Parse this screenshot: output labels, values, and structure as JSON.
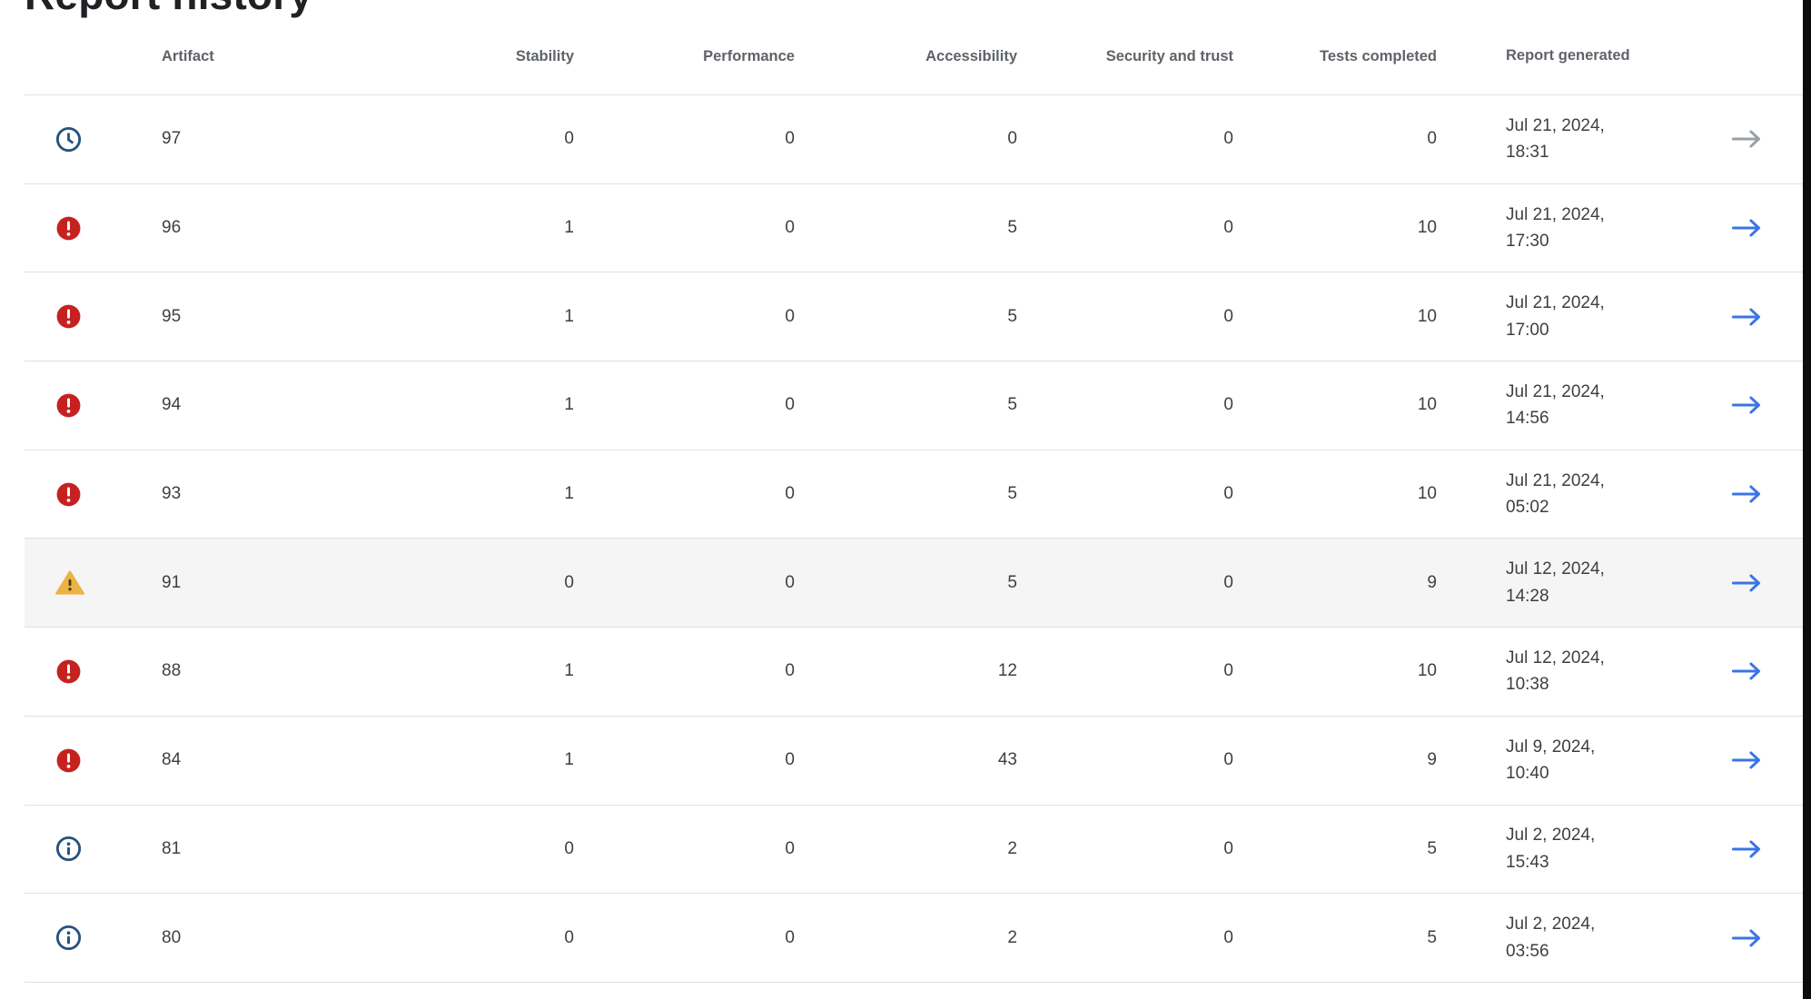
{
  "title": "Report history",
  "columns": {
    "artifact": "Artifact",
    "stability": "Stability",
    "performance": "Performance",
    "accessibility": "Accessibility",
    "security": "Security and trust",
    "tests": "Tests completed",
    "report": "Report generated"
  },
  "rows": [
    {
      "status": "pending",
      "artifact": "97",
      "stability": "0",
      "performance": "0",
      "accessibility": "0",
      "security": "0",
      "tests": "0",
      "date_line1": "Jul 21, 2024,",
      "date_line2": "18:31",
      "arrow": "gray",
      "highlighted": false
    },
    {
      "status": "error",
      "artifact": "96",
      "stability": "1",
      "performance": "0",
      "accessibility": "5",
      "security": "0",
      "tests": "10",
      "date_line1": "Jul 21, 2024,",
      "date_line2": "17:30",
      "arrow": "blue",
      "highlighted": false
    },
    {
      "status": "error",
      "artifact": "95",
      "stability": "1",
      "performance": "0",
      "accessibility": "5",
      "security": "0",
      "tests": "10",
      "date_line1": "Jul 21, 2024,",
      "date_line2": "17:00",
      "arrow": "blue",
      "highlighted": false
    },
    {
      "status": "error",
      "artifact": "94",
      "stability": "1",
      "performance": "0",
      "accessibility": "5",
      "security": "0",
      "tests": "10",
      "date_line1": "Jul 21, 2024,",
      "date_line2": "14:56",
      "arrow": "blue",
      "highlighted": false
    },
    {
      "status": "error",
      "artifact": "93",
      "stability": "1",
      "performance": "0",
      "accessibility": "5",
      "security": "0",
      "tests": "10",
      "date_line1": "Jul 21, 2024,",
      "date_line2": "05:02",
      "arrow": "blue",
      "highlighted": false
    },
    {
      "status": "warning",
      "artifact": "91",
      "stability": "0",
      "performance": "0",
      "accessibility": "5",
      "security": "0",
      "tests": "9",
      "date_line1": "Jul 12, 2024,",
      "date_line2": "14:28",
      "arrow": "blue",
      "highlighted": true
    },
    {
      "status": "error",
      "artifact": "88",
      "stability": "1",
      "performance": "0",
      "accessibility": "12",
      "security": "0",
      "tests": "10",
      "date_line1": "Jul 12, 2024,",
      "date_line2": "10:38",
      "arrow": "blue",
      "highlighted": false
    },
    {
      "status": "error",
      "artifact": "84",
      "stability": "1",
      "performance": "0",
      "accessibility": "43",
      "security": "0",
      "tests": "9",
      "date_line1": "Jul 9, 2024,",
      "date_line2": "10:40",
      "arrow": "blue",
      "highlighted": false
    },
    {
      "status": "info",
      "artifact": "81",
      "stability": "0",
      "performance": "0",
      "accessibility": "2",
      "security": "0",
      "tests": "5",
      "date_line1": "Jul 2, 2024,",
      "date_line2": "15:43",
      "arrow": "blue",
      "highlighted": false
    },
    {
      "status": "info",
      "artifact": "80",
      "stability": "0",
      "performance": "0",
      "accessibility": "2",
      "security": "0",
      "tests": "5",
      "date_line1": "Jul 2, 2024,",
      "date_line2": "03:56",
      "arrow": "blue",
      "highlighted": false
    }
  ],
  "icons": {
    "pending": "schedule-icon",
    "error": "error-icon",
    "warning": "warning-icon",
    "info": "info-icon",
    "row_action": "arrow-forward-icon"
  },
  "colors": {
    "error": "#c5221f",
    "error_glyph": "#ffffff",
    "warning": "#ecb244",
    "warning_glyph": "#473d1e",
    "info": "#27517e",
    "pending": "#27517e",
    "arrow_blue": "#3b74e8",
    "arrow_gray": "#9aa0a6",
    "highlight_bg": "#f5f5f5",
    "divider": "#e0e0e0",
    "header_text": "#5f6368",
    "cell_text": "#3c4043",
    "title_text": "#202124"
  }
}
